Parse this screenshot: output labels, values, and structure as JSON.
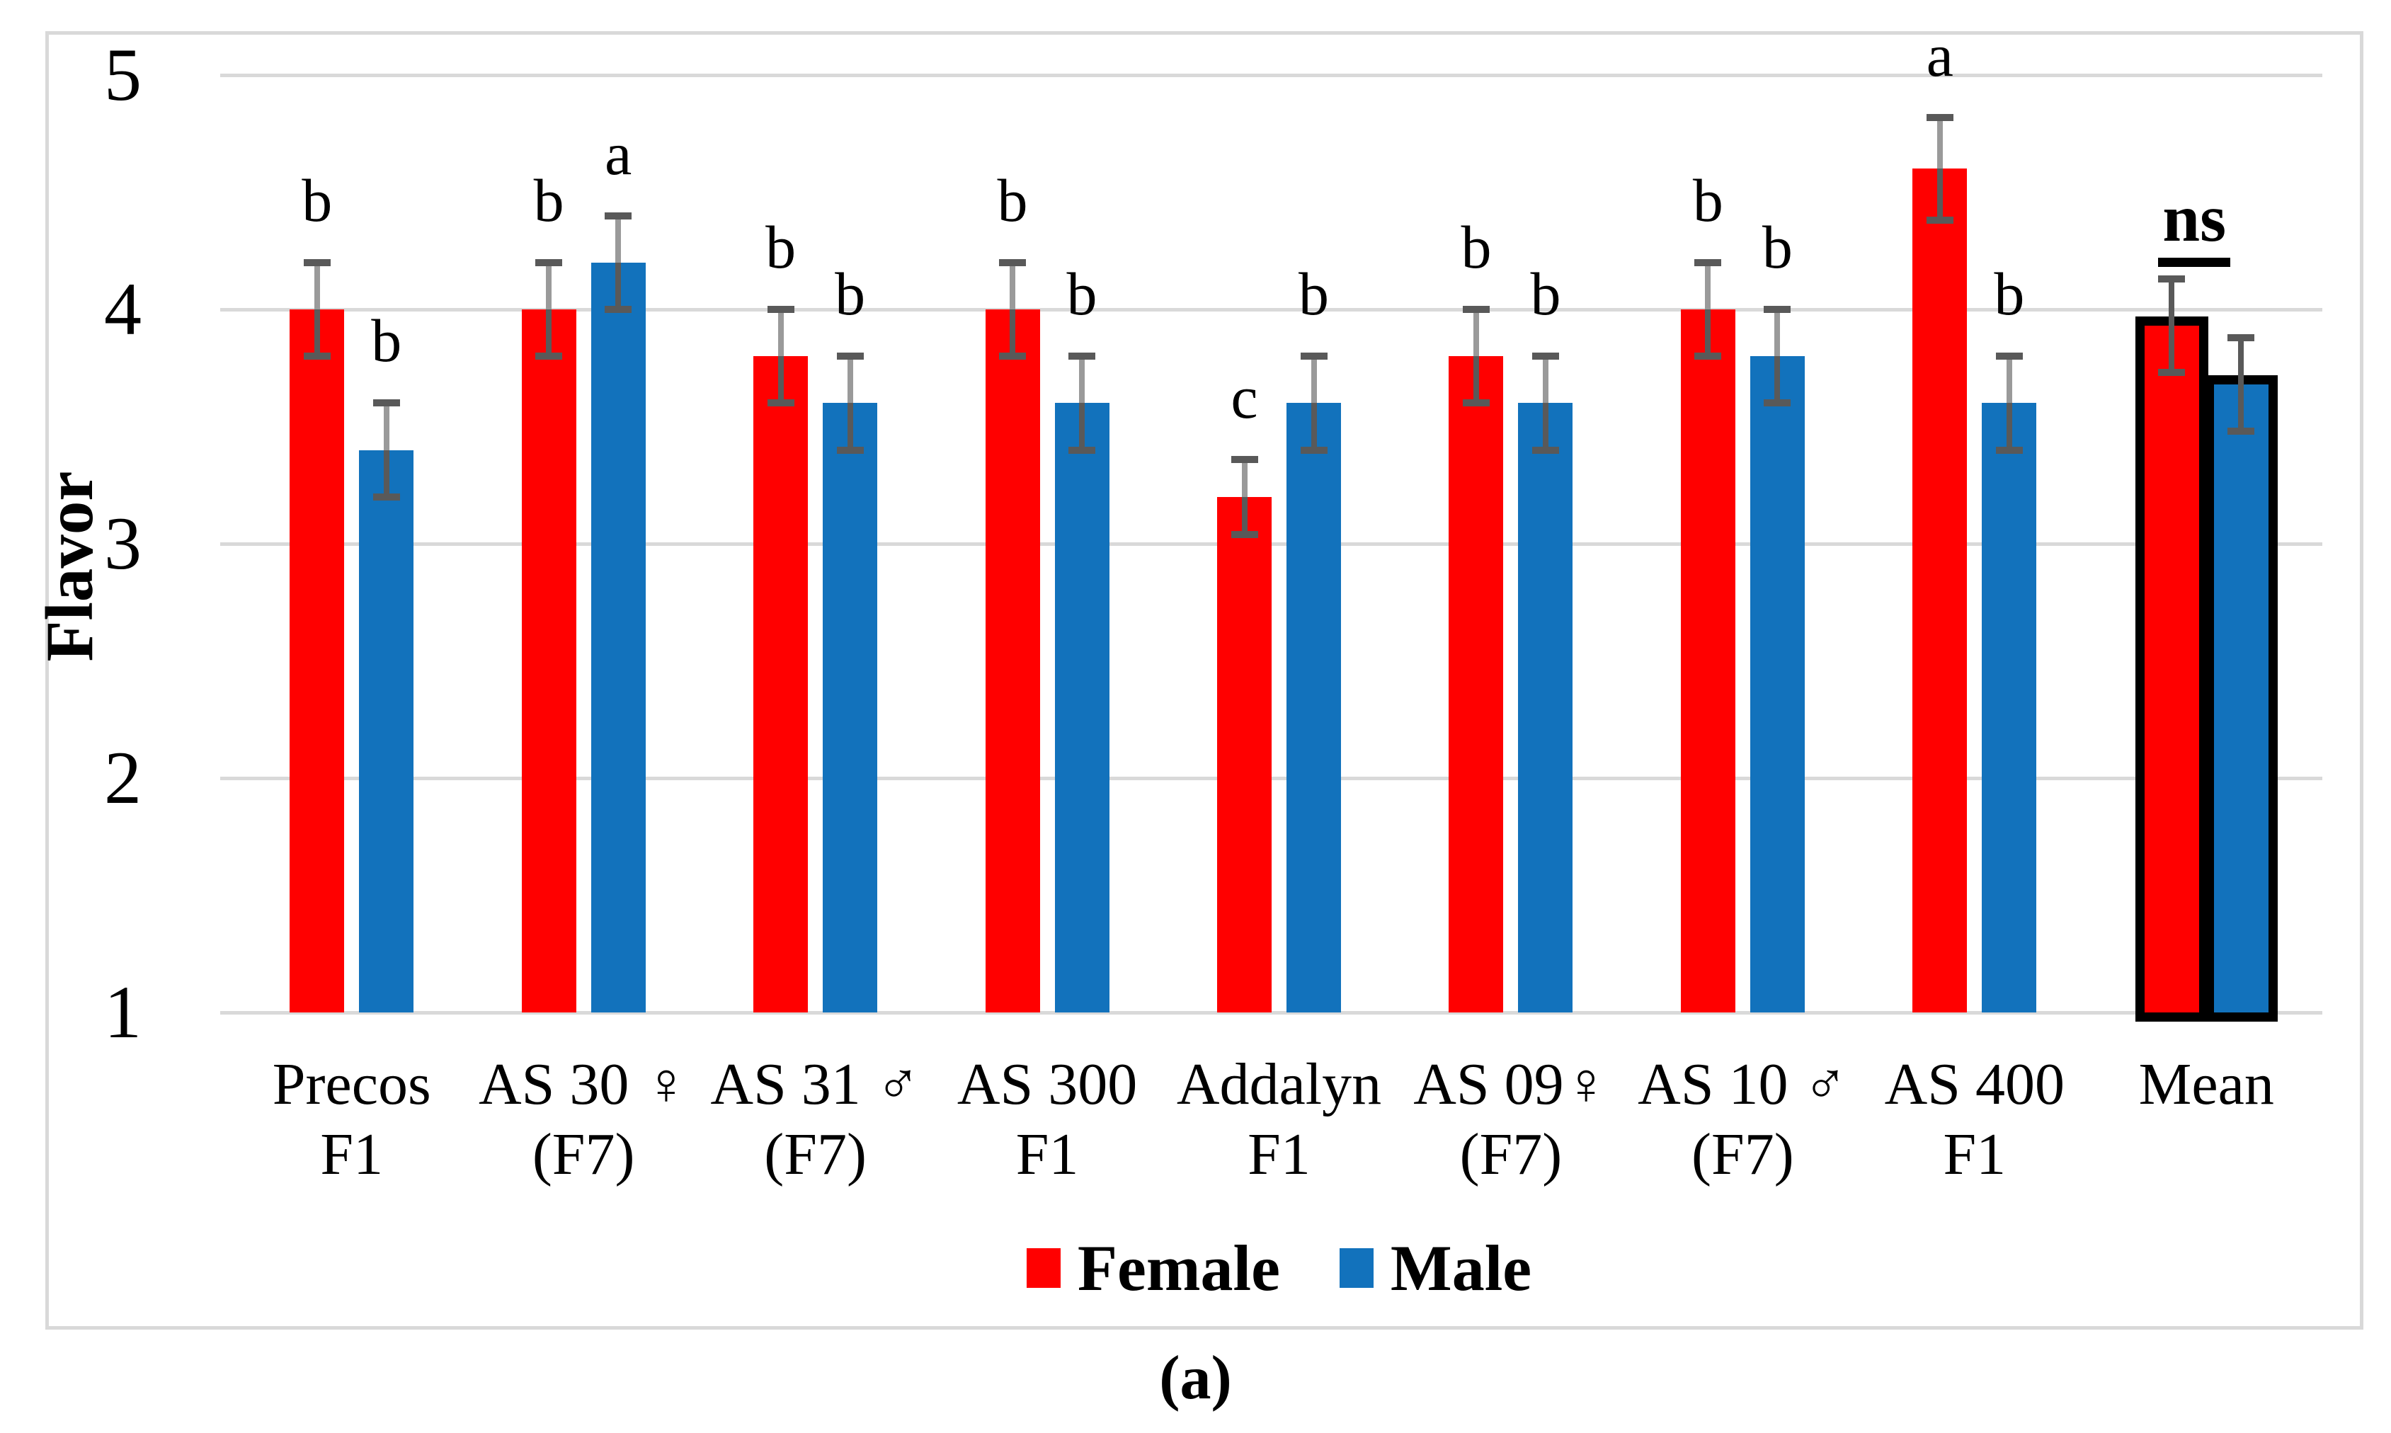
{
  "figure": {
    "caption": "(a)"
  },
  "colors": {
    "female": "#FF0000",
    "male": "#1272BC",
    "gridline": "#D9D9D9",
    "error_bar_light": "#9A9A9A",
    "error_bar_dark": "#595959",
    "outline": "#000000",
    "figure_border": "#D9D9D9"
  },
  "chart_data": {
    "type": "bar",
    "title": "",
    "xlabel": "",
    "ylabel": "Flavor",
    "ylim": [
      1,
      5
    ],
    "yticks": [
      1,
      2,
      3,
      4,
      5
    ],
    "grid": true,
    "legend_position": "bottom",
    "error_bars": true,
    "series": [
      {
        "name": "Female",
        "color": "#FF0000"
      },
      {
        "name": "Male",
        "color": "#1272BC"
      }
    ],
    "categories": [
      {
        "label_lines": [
          "Precos",
          "F1"
        ],
        "female": {
          "value": 4.0,
          "err": 0.2,
          "letter": "b"
        },
        "male": {
          "value": 3.4,
          "err": 0.2,
          "letter": "b"
        },
        "outlined": false,
        "annotation": ""
      },
      {
        "label_lines": [
          "AS 30 ♀",
          "(F7)"
        ],
        "female": {
          "value": 4.0,
          "err": 0.2,
          "letter": "b"
        },
        "male": {
          "value": 4.2,
          "err": 0.2,
          "letter": "a"
        },
        "outlined": false,
        "annotation": ""
      },
      {
        "label_lines": [
          "AS 31 ♂",
          "(F7)"
        ],
        "female": {
          "value": 3.8,
          "err": 0.2,
          "letter": "b"
        },
        "male": {
          "value": 3.6,
          "err": 0.2,
          "letter": "b"
        },
        "outlined": false,
        "annotation": ""
      },
      {
        "label_lines": [
          "AS 300",
          "F1"
        ],
        "female": {
          "value": 4.0,
          "err": 0.2,
          "letter": "b"
        },
        "male": {
          "value": 3.6,
          "err": 0.2,
          "letter": "b"
        },
        "outlined": false,
        "annotation": ""
      },
      {
        "label_lines": [
          "Addalyn",
          "F1"
        ],
        "female": {
          "value": 3.2,
          "err": 0.16,
          "letter": "c"
        },
        "male": {
          "value": 3.6,
          "err": 0.2,
          "letter": "b"
        },
        "outlined": false,
        "annotation": ""
      },
      {
        "label_lines": [
          "AS 09♀",
          "(F7)"
        ],
        "female": {
          "value": 3.8,
          "err": 0.2,
          "letter": "b"
        },
        "male": {
          "value": 3.6,
          "err": 0.2,
          "letter": "b"
        },
        "outlined": false,
        "annotation": ""
      },
      {
        "label_lines": [
          "AS 10 ♂",
          "(F7)"
        ],
        "female": {
          "value": 4.0,
          "err": 0.2,
          "letter": "b"
        },
        "male": {
          "value": 3.8,
          "err": 0.2,
          "letter": "b"
        },
        "outlined": false,
        "annotation": ""
      },
      {
        "label_lines": [
          "AS 400",
          "F1"
        ],
        "female": {
          "value": 4.6,
          "err": 0.22,
          "letter": "a"
        },
        "male": {
          "value": 3.6,
          "err": 0.2,
          "letter": "b"
        },
        "outlined": false,
        "annotation": ""
      },
      {
        "label_lines": [
          "Mean"
        ],
        "female": {
          "value": 3.93,
          "err": 0.2,
          "letter": ""
        },
        "male": {
          "value": 3.68,
          "err": 0.2,
          "letter": ""
        },
        "outlined": true,
        "annotation": "ns"
      }
    ]
  }
}
